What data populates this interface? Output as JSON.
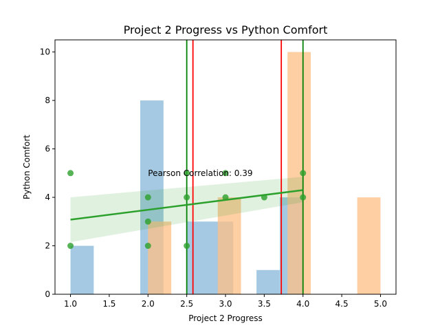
{
  "chart_data": {
    "type": "scatter",
    "title": "Project 2 Progress vs Python Comfort",
    "xlabel": "Project 2 Progress",
    "ylabel": "Python Comfort",
    "xlim": [
      0.8,
      5.2
    ],
    "ylim": [
      0,
      10.5
    ],
    "x_ticks": [
      "1.0",
      "1.5",
      "2.0",
      "2.5",
      "3.0",
      "3.5",
      "4.0",
      "4.5",
      "5.0"
    ],
    "y_ticks": [
      "0",
      "2",
      "4",
      "6",
      "8",
      "10"
    ],
    "grid": false,
    "annotation": "Pearson Correlation: 0.39",
    "annotation_pos": [
      2.0,
      5.0
    ],
    "histogram_blue": {
      "color": "#7fb2d6",
      "bins": [
        {
          "from": 1.0,
          "to": 1.3,
          "count": 2
        },
        {
          "from": 1.9,
          "to": 2.2,
          "count": 8
        },
        {
          "from": 2.5,
          "to": 3.1,
          "count": 3
        },
        {
          "from": 3.4,
          "to": 3.7,
          "count": 1
        },
        {
          "from": 3.7,
          "to": 4.0,
          "count": 4
        }
      ]
    },
    "histogram_orange": {
      "color": "#ffbf86",
      "bins": [
        {
          "from": 2.0,
          "to": 2.3,
          "count": 3
        },
        {
          "from": 2.9,
          "to": 3.2,
          "count": 4
        },
        {
          "from": 3.8,
          "to": 4.1,
          "count": 10
        },
        {
          "from": 4.7,
          "to": 5.0,
          "count": 4
        }
      ]
    },
    "scatter": {
      "color": "#2ca02c",
      "points": [
        {
          "x": 1.0,
          "y": 5
        },
        {
          "x": 1.0,
          "y": 2
        },
        {
          "x": 2.0,
          "y": 4
        },
        {
          "x": 2.0,
          "y": 3
        },
        {
          "x": 2.0,
          "y": 2
        },
        {
          "x": 2.5,
          "y": 5
        },
        {
          "x": 2.5,
          "y": 4
        },
        {
          "x": 2.5,
          "y": 2
        },
        {
          "x": 3.0,
          "y": 5
        },
        {
          "x": 3.0,
          "y": 4
        },
        {
          "x": 3.5,
          "y": 4
        },
        {
          "x": 4.0,
          "y": 5
        },
        {
          "x": 4.0,
          "y": 4
        }
      ]
    },
    "regression": {
      "color": "#2ca02c",
      "x": [
        1.0,
        4.0
      ],
      "y": [
        3.08,
        4.3
      ],
      "ci_lower": [
        2.15,
        3.8
      ],
      "ci_upper": [
        4.0,
        4.85
      ]
    },
    "vertical_lines": [
      {
        "x": 2.5,
        "color": "#008000"
      },
      {
        "x": 2.58,
        "color": "#ff0000"
      },
      {
        "x": 3.72,
        "color": "#ff0000"
      },
      {
        "x": 4.0,
        "color": "#008000"
      }
    ]
  }
}
